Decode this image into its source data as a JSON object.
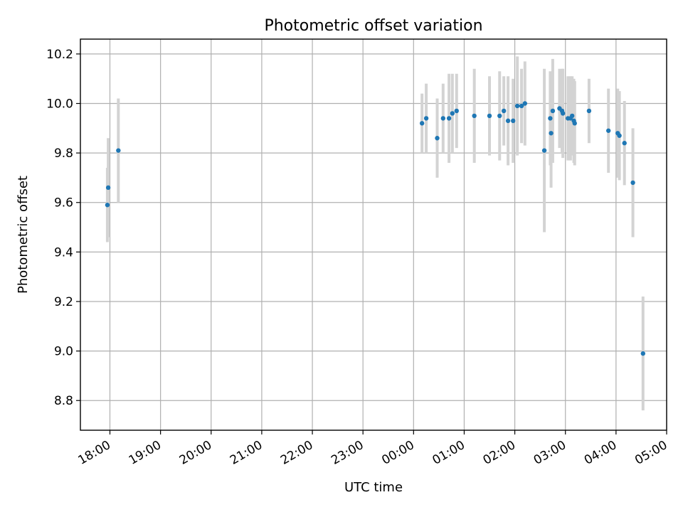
{
  "chart_data": {
    "type": "scatter",
    "title": "Photometric offset variation",
    "xlabel": "UTC time",
    "ylabel": "Photometric offset",
    "x_is_time": true,
    "xlim": [
      "17:25",
      "05:00"
    ],
    "ylim": [
      8.68,
      10.26
    ],
    "x_ticks": [
      "18:00",
      "19:00",
      "20:00",
      "21:00",
      "22:00",
      "23:00",
      "00:00",
      "01:00",
      "02:00",
      "03:00",
      "04:00",
      "05:00"
    ],
    "y_ticks": [
      "8.8",
      "9.0",
      "9.2",
      "9.4",
      "9.6",
      "9.8",
      "10.0",
      "10.2"
    ],
    "grid": true,
    "point_color": "#1f77b4",
    "errorbar_color": "#d3d3d3",
    "points": [
      {
        "x": "17:57",
        "y": 9.59,
        "err": 0.15
      },
      {
        "x": "17:58",
        "y": 9.66,
        "err": 0.2
      },
      {
        "x": "18:10",
        "y": 9.81,
        "err": 0.21
      },
      {
        "x": "00:10",
        "y": 9.92,
        "err": 0.12
      },
      {
        "x": "00:15",
        "y": 9.94,
        "err": 0.14
      },
      {
        "x": "00:28",
        "y": 9.86,
        "err": 0.16
      },
      {
        "x": "00:35",
        "y": 9.94,
        "err": 0.14
      },
      {
        "x": "00:42",
        "y": 9.94,
        "err": 0.18
      },
      {
        "x": "00:46",
        "y": 9.96,
        "err": 0.16
      },
      {
        "x": "00:51",
        "y": 9.97,
        "err": 0.15
      },
      {
        "x": "01:12",
        "y": 9.95,
        "err": 0.19
      },
      {
        "x": "01:30",
        "y": 9.95,
        "err": 0.16
      },
      {
        "x": "01:42",
        "y": 9.95,
        "err": 0.18
      },
      {
        "x": "01:47",
        "y": 9.97,
        "err": 0.14
      },
      {
        "x": "01:52",
        "y": 9.93,
        "err": 0.18
      },
      {
        "x": "01:58",
        "y": 9.93,
        "err": 0.17
      },
      {
        "x": "02:03",
        "y": 9.99,
        "err": 0.2
      },
      {
        "x": "02:08",
        "y": 9.99,
        "err": 0.15
      },
      {
        "x": "02:12",
        "y": 10.0,
        "err": 0.17
      },
      {
        "x": "02:35",
        "y": 9.81,
        "err": 0.33
      },
      {
        "x": "02:42",
        "y": 9.94,
        "err": 0.19
      },
      {
        "x": "02:43",
        "y": 9.88,
        "err": 0.22
      },
      {
        "x": "02:45",
        "y": 9.97,
        "err": 0.21
      },
      {
        "x": "02:53",
        "y": 9.98,
        "err": 0.16
      },
      {
        "x": "02:56",
        "y": 9.97,
        "err": 0.17
      },
      {
        "x": "02:57",
        "y": 9.96,
        "err": 0.18
      },
      {
        "x": "03:03",
        "y": 9.94,
        "err": 0.17
      },
      {
        "x": "03:06",
        "y": 9.94,
        "err": 0.17
      },
      {
        "x": "03:08",
        "y": 9.95,
        "err": 0.16
      },
      {
        "x": "03:10",
        "y": 9.93,
        "err": 0.17
      },
      {
        "x": "03:11",
        "y": 9.92,
        "err": 0.17
      },
      {
        "x": "03:28",
        "y": 9.97,
        "err": 0.13
      },
      {
        "x": "03:51",
        "y": 9.89,
        "err": 0.17
      },
      {
        "x": "04:02",
        "y": 9.88,
        "err": 0.18
      },
      {
        "x": "04:04",
        "y": 9.87,
        "err": 0.18
      },
      {
        "x": "04:10",
        "y": 9.84,
        "err": 0.17
      },
      {
        "x": "04:20",
        "y": 9.68,
        "err": 0.22
      },
      {
        "x": "04:32",
        "y": 8.99,
        "err": 0.23
      }
    ]
  }
}
